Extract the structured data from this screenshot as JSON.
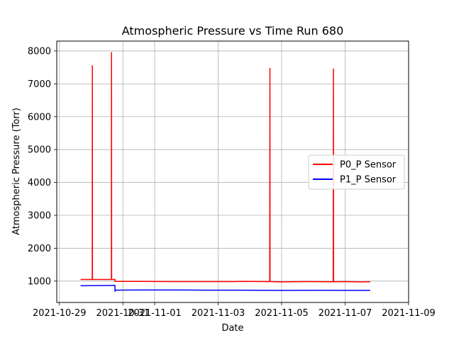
{
  "chart_data": {
    "type": "line",
    "title": "Atmospheric Pressure vs Time Run 680",
    "xlabel": "Date",
    "ylabel": "Atmospheric Pressure (Torr)",
    "x_ticks": [
      "2021-10-29",
      "2021-10-31",
      "2021-11-01",
      "2021-11-03",
      "2021-11-05",
      "2021-11-07",
      "2021-11-09"
    ],
    "y_ticks": [
      1000,
      2000,
      3000,
      4000,
      5000,
      6000,
      7000,
      8000
    ],
    "xlim": [
      "2021-10-28T22:00",
      "2021-11-09T00:00"
    ],
    "ylim": [
      350,
      8300
    ],
    "grid": true,
    "legend_position": "center-right",
    "series": [
      {
        "name": "P0_P Sensor",
        "color": "#ff0000",
        "points": [
          [
            "2021-10-29T16:00",
            1050
          ],
          [
            "2021-10-30T00:30",
            1050
          ],
          [
            "2021-10-30T00:50",
            1050
          ],
          [
            "2021-10-30T00:55",
            7550
          ],
          [
            "2021-10-30T01:00",
            1050
          ],
          [
            "2021-10-30T12:00",
            1050
          ],
          [
            "2021-10-30T15:20",
            1050
          ],
          [
            "2021-10-30T15:25",
            7950
          ],
          [
            "2021-10-30T15:30",
            1050
          ],
          [
            "2021-10-30T18:00",
            1050
          ],
          [
            "2021-10-30T18:05",
            990
          ],
          [
            "2021-10-31T12:00",
            990
          ],
          [
            "2021-11-01T12:00",
            985
          ],
          [
            "2021-11-02T12:00",
            985
          ],
          [
            "2021-11-03T12:00",
            985
          ],
          [
            "2021-11-03T18:00",
            990
          ],
          [
            "2021-11-04T12:00",
            985
          ],
          [
            "2021-11-04T15:00",
            985
          ],
          [
            "2021-11-04T15:10",
            7470
          ],
          [
            "2021-11-04T15:15",
            985
          ],
          [
            "2021-11-05T00:00",
            975
          ],
          [
            "2021-11-05T18:00",
            985
          ],
          [
            "2021-11-06T12:00",
            980
          ],
          [
            "2021-11-06T15:00",
            980
          ],
          [
            "2021-11-06T15:10",
            7450
          ],
          [
            "2021-11-06T15:15",
            980
          ],
          [
            "2021-11-07T00:00",
            985
          ],
          [
            "2021-11-07T12:00",
            975
          ],
          [
            "2021-11-07T19:00",
            980
          ]
        ]
      },
      {
        "name": "P1_P Sensor",
        "color": "#0000ff",
        "points": [
          [
            "2021-10-29T16:00",
            860
          ],
          [
            "2021-10-30T12:00",
            865
          ],
          [
            "2021-10-30T18:00",
            870
          ],
          [
            "2021-10-30T18:05",
            690
          ],
          [
            "2021-10-30T18:30",
            725
          ],
          [
            "2021-10-31T12:00",
            730
          ],
          [
            "2021-11-01T12:00",
            730
          ],
          [
            "2021-11-02T12:00",
            725
          ],
          [
            "2021-11-03T12:00",
            725
          ],
          [
            "2021-11-04T12:00",
            720
          ],
          [
            "2021-11-05T00:00",
            715
          ],
          [
            "2021-11-05T18:00",
            720
          ],
          [
            "2021-11-06T12:00",
            720
          ],
          [
            "2021-11-07T12:00",
            715
          ],
          [
            "2021-11-07T19:00",
            720
          ]
        ]
      }
    ]
  }
}
